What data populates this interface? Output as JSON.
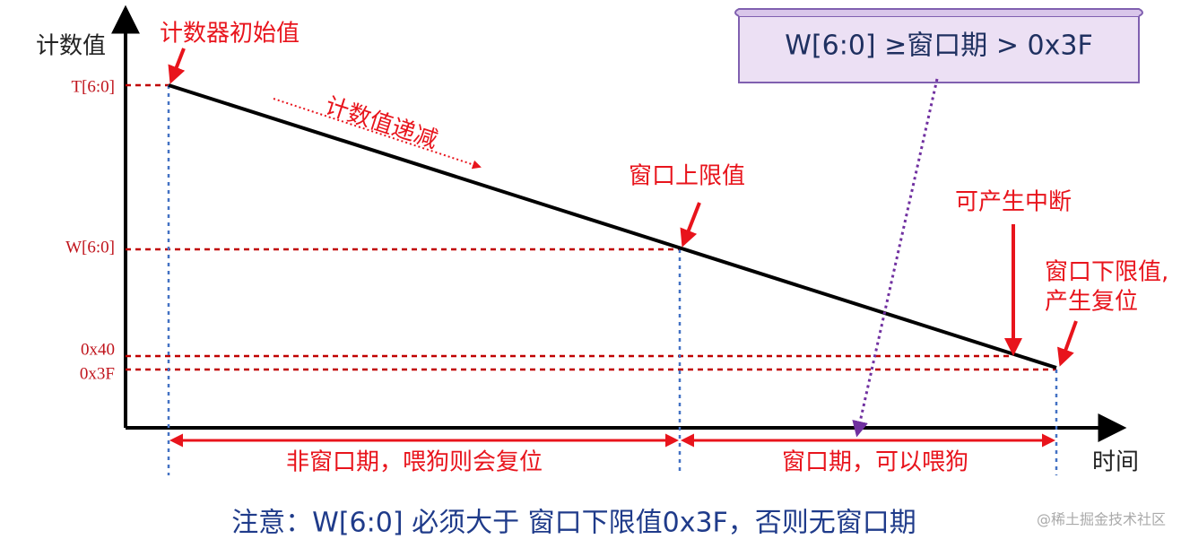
{
  "axes": {
    "y_label": "计数值",
    "x_label": "时间"
  },
  "levels": [
    "T[6:0]",
    "W[6:0]",
    "0x40",
    "0x3F"
  ],
  "annotations": {
    "initial_value": "计数器初始值",
    "decrement": "计数值递减",
    "upper_limit": "窗口上限值",
    "interrupt": "可产生中断",
    "lower_limit": [
      "窗口下限值,",
      "产生复位"
    ]
  },
  "scroll_text": "W[6:0] ≥窗口期 > 0x3F",
  "intervals": [
    "非窗口期，喂狗则会复位",
    "窗口期，可以喂狗"
  ],
  "note": "注意：W[6:0] 必须大于 窗口下限值0x3F，否则无窗口期",
  "watermark": "@稀土掘金技术社区"
}
